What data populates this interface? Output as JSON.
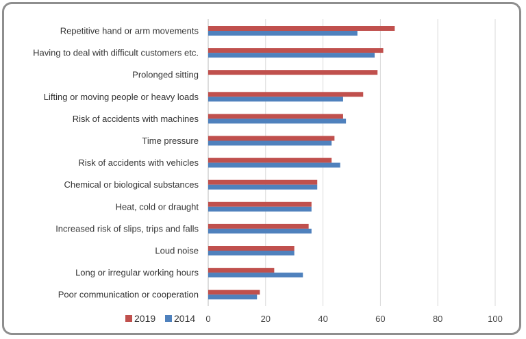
{
  "chart_data": {
    "type": "bar",
    "orientation": "horizontal",
    "categories": [
      "Repetitive hand or arm movements",
      "Having to deal with difficult customers etc.",
      "Prolonged sitting",
      "Lifting or moving people or heavy loads",
      "Risk of accidents with machines",
      "Time pressure",
      "Risk of accidents with vehicles",
      "Chemical or biological substances",
      "Heat, cold or draught",
      "Increased risk of slips, trips and falls",
      "Loud noise",
      "Long or irregular working hours",
      "Poor communication or cooperation"
    ],
    "series": [
      {
        "name": "2019",
        "color": "#c0504d",
        "values": [
          65,
          61,
          59,
          54,
          47,
          44,
          43,
          38,
          36,
          35,
          30,
          23,
          18
        ]
      },
      {
        "name": "2014",
        "color": "#4f81bd",
        "values": [
          52,
          58,
          null,
          47,
          48,
          43,
          46,
          38,
          36,
          36,
          30,
          33,
          17
        ]
      }
    ],
    "xlim": [
      0,
      100
    ],
    "xticks": [
      0,
      20,
      40,
      60,
      80,
      100
    ],
    "grid": true,
    "legend": "bottom-left",
    "title": "",
    "xlabel": "",
    "ylabel": ""
  }
}
